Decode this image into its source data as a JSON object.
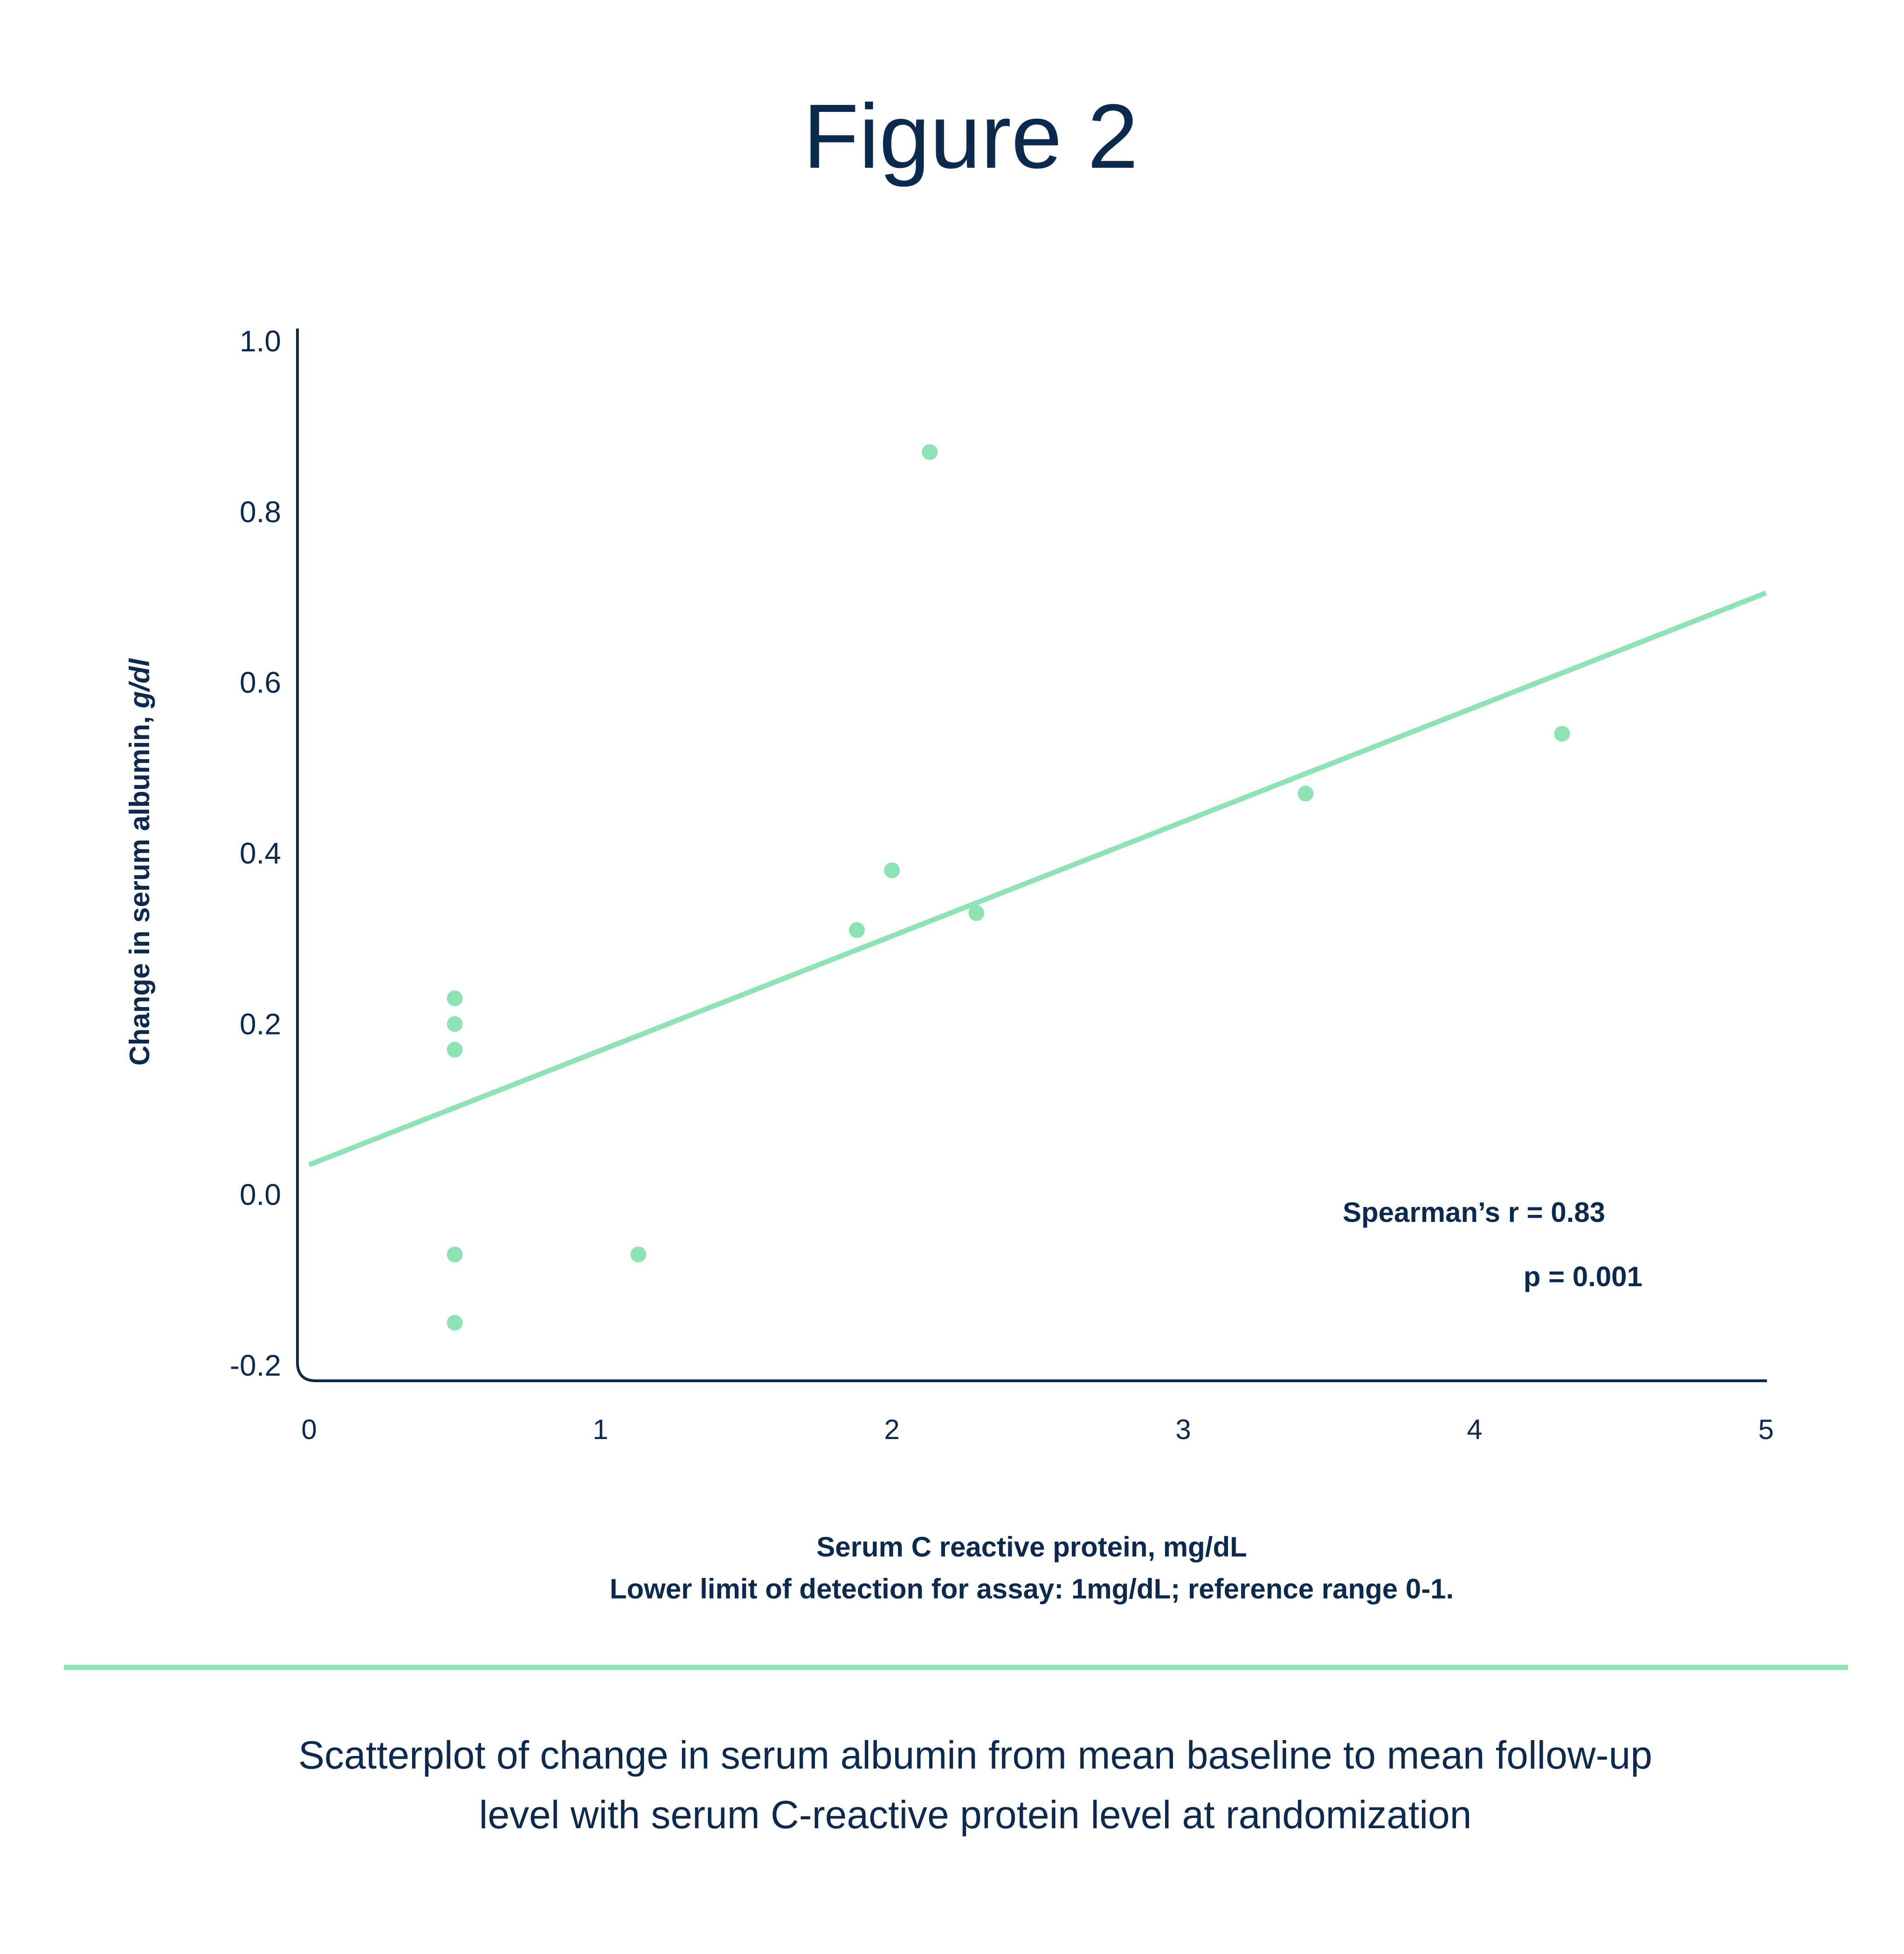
{
  "figure_title": "Figure 2",
  "caption_line1": "Scatterplot of change in serum albumin from mean baseline to mean follow-up",
  "caption_line2": "level with serum C-reactive protein level at randomization",
  "colors": {
    "text": "#0c2a4d",
    "accent": "#8ee3b5",
    "background": "#ffffff"
  },
  "chart_data": {
    "type": "scatter",
    "ylabel_main": "Change in serum albumin, ",
    "ylabel_unit": "g/dl",
    "xlabel": "Serum C reactive protein, mg/dL",
    "xlabel_note": "Lower limit of detection for assay: 1mg/dL; reference range 0-1.",
    "xlim": [
      0,
      5
    ],
    "ylim": [
      -0.2,
      1.0
    ],
    "x_ticks": [
      0,
      1,
      2,
      3,
      4,
      5
    ],
    "x_tick_labels": [
      "0",
      "1",
      "2",
      "3",
      "4",
      "5"
    ],
    "y_ticks": [
      1.0,
      0.8,
      0.6,
      0.4,
      0.2,
      0.0,
      -0.2
    ],
    "y_tick_labels": [
      "1.0",
      "0.8",
      "0.6",
      "0.4",
      "0.2",
      "0.0",
      "-0.2"
    ],
    "grid": false,
    "points": [
      {
        "x": 0.5,
        "y": 0.23
      },
      {
        "x": 0.5,
        "y": 0.2
      },
      {
        "x": 0.5,
        "y": 0.17
      },
      {
        "x": 0.5,
        "y": -0.07
      },
      {
        "x": 0.5,
        "y": -0.15
      },
      {
        "x": 1.13,
        "y": -0.07
      },
      {
        "x": 1.88,
        "y": 0.31
      },
      {
        "x": 2.0,
        "y": 0.38
      },
      {
        "x": 2.13,
        "y": 0.87
      },
      {
        "x": 2.29,
        "y": 0.33
      },
      {
        "x": 3.42,
        "y": 0.47
      },
      {
        "x": 4.3,
        "y": 0.54
      }
    ],
    "trendline": {
      "x": [
        0,
        5
      ],
      "y": [
        0.035,
        0.705
      ]
    },
    "annotations": {
      "spearman": "Spearman’s r = 0.83",
      "p_value": "p = 0.001"
    }
  }
}
